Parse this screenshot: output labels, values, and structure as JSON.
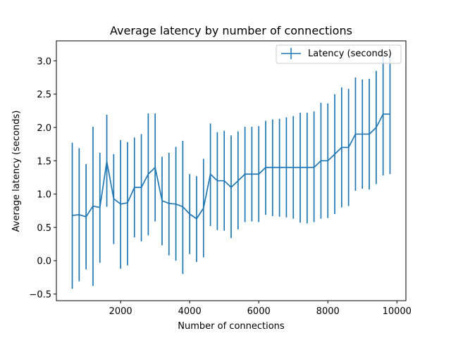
{
  "chart_data": {
    "type": "line",
    "title": "Average latency by number of connections",
    "xlabel": "Number of connections",
    "ylabel": "Average latency (seconds)",
    "xlim": [
      140,
      10260
    ],
    "ylim": [
      -0.6,
      3.3
    ],
    "x_ticks": [
      2000,
      4000,
      6000,
      8000,
      10000
    ],
    "x_tick_labels": [
      "2000",
      "4000",
      "6000",
      "8000",
      "10000"
    ],
    "y_ticks": [
      -0.5,
      0.0,
      0.5,
      1.0,
      1.5,
      2.0,
      2.5,
      3.0
    ],
    "y_tick_labels": [
      "−0.5",
      "0.0",
      "0.5",
      "1.0",
      "1.5",
      "2.0",
      "2.5",
      "3.0"
    ],
    "grid": false,
    "legend_position": "top-right",
    "color": "#1f77b4",
    "series": [
      {
        "name": "Latency (seconds)",
        "x": [
          600,
          800,
          1000,
          1200,
          1400,
          1600,
          1800,
          2000,
          2200,
          2400,
          2600,
          2800,
          3000,
          3200,
          3400,
          3600,
          3800,
          4000,
          4200,
          4400,
          4600,
          4800,
          5000,
          5200,
          5400,
          5600,
          5800,
          6000,
          6200,
          6400,
          6600,
          6800,
          7000,
          7200,
          7400,
          7600,
          7800,
          8000,
          8200,
          8400,
          8600,
          8800,
          9000,
          9200,
          9400,
          9600,
          9800
        ],
        "y": [
          0.68,
          0.69,
          0.66,
          0.82,
          0.8,
          1.49,
          0.93,
          0.85,
          0.87,
          1.1,
          1.1,
          1.3,
          1.4,
          0.9,
          0.86,
          0.85,
          0.81,
          0.7,
          0.63,
          0.79,
          1.3,
          1.2,
          1.2,
          1.1,
          1.2,
          1.3,
          1.3,
          1.3,
          1.4,
          1.4,
          1.4,
          1.4,
          1.4,
          1.4,
          1.4,
          1.4,
          1.5,
          1.5,
          1.6,
          1.7,
          1.7,
          1.9,
          1.9,
          1.9,
          2.0,
          2.2,
          2.2
        ],
        "yerr_low": [
          -0.42,
          -0.31,
          -0.13,
          -0.38,
          -0.03,
          0.81,
          0.25,
          -0.12,
          -0.07,
          0.35,
          0.29,
          0.38,
          0.59,
          0.23,
          0.08,
          0.0,
          -0.2,
          0.1,
          -0.02,
          0.05,
          0.52,
          0.46,
          0.45,
          0.34,
          0.47,
          0.58,
          0.59,
          0.58,
          0.69,
          0.67,
          0.66,
          0.65,
          0.63,
          0.57,
          0.56,
          0.58,
          0.63,
          0.64,
          0.7,
          0.8,
          0.82,
          1.05,
          1.08,
          1.07,
          1.15,
          1.28,
          1.3
        ],
        "yerr_high": [
          1.77,
          1.69,
          1.45,
          2.01,
          1.62,
          2.19,
          1.6,
          1.81,
          1.78,
          1.85,
          1.9,
          2.21,
          2.21,
          1.56,
          1.62,
          1.71,
          1.8,
          1.3,
          1.27,
          1.53,
          2.06,
          1.93,
          1.95,
          1.88,
          1.94,
          2.01,
          2.01,
          2.02,
          2.1,
          2.12,
          2.13,
          2.15,
          2.17,
          2.22,
          2.22,
          2.24,
          2.37,
          2.36,
          2.5,
          2.6,
          2.58,
          2.75,
          2.72,
          2.73,
          2.85,
          3.1,
          3.1
        ]
      }
    ]
  }
}
